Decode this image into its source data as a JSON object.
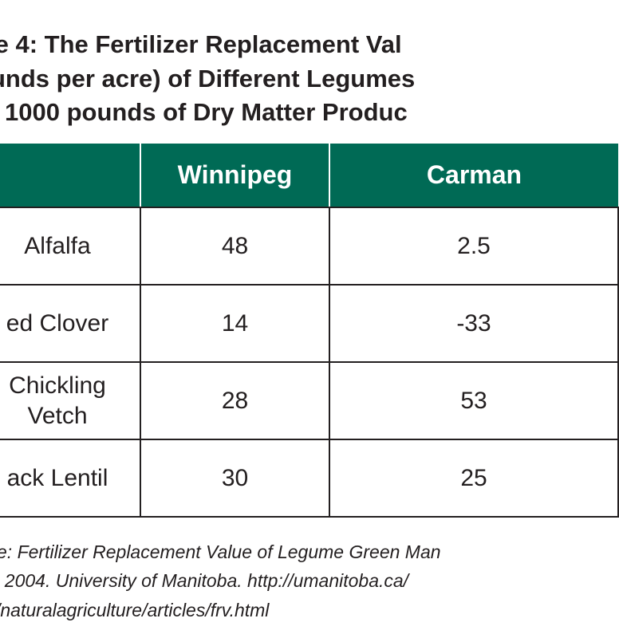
{
  "title": {
    "line1": "le 4: The Fertilizer Replacement Val",
    "line2": "unds per acre) of Different Legumes",
    "line3": "1000 pounds of Dry Matter Produc"
  },
  "table": {
    "headers": [
      "",
      "Winnipeg",
      "Carman"
    ],
    "rows": [
      {
        "crop": "Alfalfa",
        "winnipeg": "48",
        "carman": "2.5"
      },
      {
        "crop": "ed Clover",
        "winnipeg": "14",
        "carman": "-33"
      },
      {
        "crop_line1": "Chickling",
        "crop_line2": "Vetch",
        "winnipeg": "28",
        "carman": "53"
      },
      {
        "crop": "ack Lentil",
        "winnipeg": "30",
        "carman": "25"
      }
    ]
  },
  "source": {
    "line1": "e: Fertilizer Replacement Value of Legume Green Man",
    "line2": ". 2004. University of Manitoba. http://umanitoba.ca/",
    "line3": "/naturalagriculture/articles/frv.html"
  },
  "colors": {
    "header_background": "#006a55",
    "header_text": "#ffffff",
    "body_text": "#231f20",
    "grid_lines": "#231f20"
  }
}
